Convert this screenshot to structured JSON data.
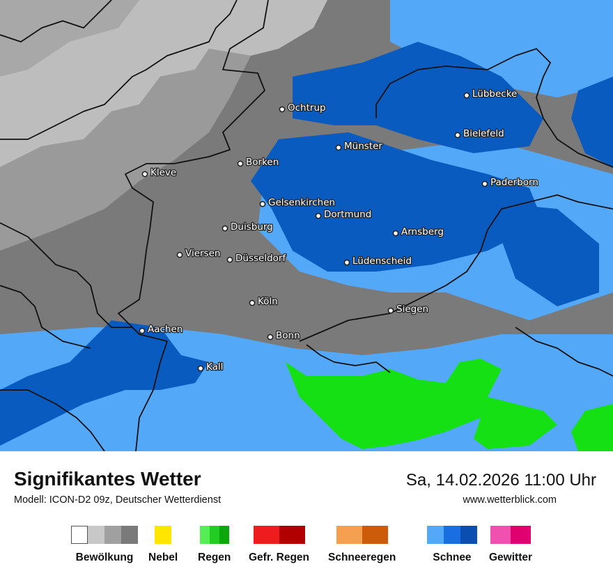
{
  "map": {
    "colors": {
      "cloud_light": "#bdbdbd",
      "cloud_mid": "#9a9a9a",
      "cloud_dark": "#7a7a7a",
      "snow_light": "#54a8f8",
      "snow_dark": "#0a5bbf",
      "rain": "#14e014",
      "border": "#111111"
    },
    "cities": [
      {
        "name": "Lübbecke"
      },
      {
        "name": "Ochtrup"
      },
      {
        "name": "Bielefeld"
      },
      {
        "name": "Münster"
      },
      {
        "name": "Borken"
      },
      {
        "name": "Kleve"
      },
      {
        "name": "Paderborn"
      },
      {
        "name": "Gelsenkirchen"
      },
      {
        "name": "Dortmund"
      },
      {
        "name": "Duisburg"
      },
      {
        "name": "Arnsberg"
      },
      {
        "name": "Viersen"
      },
      {
        "name": "Düsseldorf"
      },
      {
        "name": "Lüdenscheid"
      },
      {
        "name": "Köln"
      },
      {
        "name": "Siegen"
      },
      {
        "name": "Aachen"
      },
      {
        "name": "Bonn"
      },
      {
        "name": "Kall"
      }
    ]
  },
  "footer": {
    "title": "Signifikantes Wetter",
    "subtitle": "Modell: ICON-D2 09z, Deutscher Wetterdienst",
    "datetime": "Sa, 14.02.2026 11:00 Uhr",
    "website": "www.wetterblick.com"
  },
  "legend": [
    {
      "label": "Bewölkung",
      "colors": [
        "#ffffff",
        "#c8c8c8",
        "#a0a0a0",
        "#7a7a7a"
      ]
    },
    {
      "label": "Nebel",
      "colors": [
        "#ffe600"
      ]
    },
    {
      "label": "Regen",
      "colors": [
        "#55ee55",
        "#22cc22",
        "#0aa80a"
      ]
    },
    {
      "label": "Gefr. Regen",
      "colors": [
        "#ee1c1c",
        "#b00000"
      ]
    },
    {
      "label": "Schneeregen",
      "colors": [
        "#f5a050",
        "#cc5c0a"
      ]
    },
    {
      "label": "Schnee",
      "colors": [
        "#54a8f8",
        "#1a6fe0",
        "#0a4fb0"
      ]
    },
    {
      "label": "Gewitter",
      "colors": [
        "#f050b0",
        "#e00070"
      ]
    }
  ]
}
